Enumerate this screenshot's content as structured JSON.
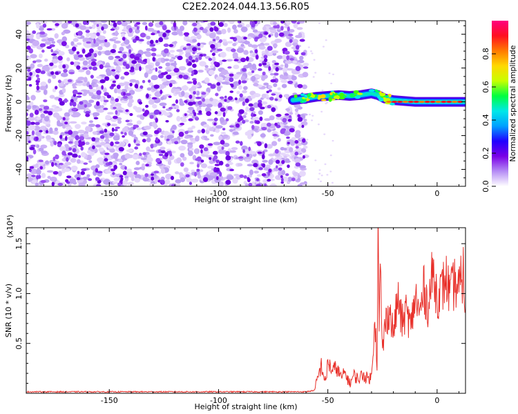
{
  "title": "C2E2.2024.044.13.56.R05",
  "chart_data": [
    {
      "type": "heatmap",
      "name": "spectrogram",
      "xlabel": "Height of straight line (km)",
      "ylabel": "Frequency (Hz)",
      "xlim": [
        -188,
        13
      ],
      "ylim": [
        -50,
        48
      ],
      "xticks": [
        -150,
        -100,
        -50,
        0
      ],
      "yticks": [
        -40,
        -20,
        0,
        20,
        40
      ],
      "noise_region_x": [
        -188,
        -60
      ],
      "signal_track": [
        {
          "x": -66,
          "y": 1
        },
        {
          "x": -60,
          "y": 2
        },
        {
          "x": -55,
          "y": 3
        },
        {
          "x": -50,
          "y": 3.5
        },
        {
          "x": -45,
          "y": 4
        },
        {
          "x": -40,
          "y": 3.5
        },
        {
          "x": -35,
          "y": 4
        },
        {
          "x": -30,
          "y": 5
        },
        {
          "x": -27,
          "y": 4
        },
        {
          "x": -24,
          "y": 2
        },
        {
          "x": -20,
          "y": 1
        },
        {
          "x": -10,
          "y": 0
        },
        {
          "x": 0,
          "y": 0
        },
        {
          "x": 13,
          "y": 0
        }
      ],
      "colorbar": {
        "label": "Normalized spectral amplitude",
        "range": [
          0,
          1
        ],
        "ticks": [
          "0.0",
          "0.2",
          "0.4",
          "0.6",
          "0.8"
        ],
        "colormap": [
          "#ffffff",
          "#b58cf5",
          "#7a00e6",
          "#2000ff",
          "#00a0ff",
          "#00e8e8",
          "#00ff40",
          "#c8ff00",
          "#ffd800",
          "#ff7a00",
          "#ff1020",
          "#ff0080"
        ]
      }
    },
    {
      "type": "line",
      "name": "snr",
      "xlabel": "Height of straight line (km)",
      "ylabel": "SNR (10 * v/v)",
      "yunit": "(x10⁴)",
      "xlim": [
        -188,
        13
      ],
      "ylim": [
        0,
        16600
      ],
      "xticks": [
        -150,
        -100,
        -50,
        0
      ],
      "yticks": [
        5000,
        10000,
        15000
      ],
      "ytick_labels": [
        "0.5",
        "1.0",
        "1.5"
      ],
      "color": "#e8302a",
      "series": [
        {
          "x": [
            -188,
            -150,
            -100,
            -60,
            -56,
            -55,
            -53,
            -51,
            -50,
            -48,
            -46,
            -44,
            -42,
            -40,
            -38,
            -36,
            -34,
            -32,
            -30,
            -28.5,
            -27.5,
            -27,
            -26.5,
            -26,
            -25,
            -24,
            -22,
            -20,
            -18,
            -16,
            -14,
            -12,
            -10,
            -8,
            -6,
            -4,
            -2,
            0,
            2,
            4,
            6,
            8,
            10,
            12,
            13
          ],
          "y": [
            150,
            150,
            150,
            150,
            300,
            1200,
            2800,
            1000,
            3200,
            2200,
            2600,
            1600,
            2000,
            1000,
            1800,
            1400,
            1900,
            1500,
            1600,
            8000,
            3000,
            16500,
            6000,
            12500,
            4000,
            6500,
            8500,
            6000,
            9500,
            7000,
            8300,
            6500,
            9800,
            7800,
            10500,
            8600,
            12200,
            9800,
            10200,
            11600,
            9800,
            11100,
            10300,
            12100,
            8400
          ]
        }
      ]
    }
  ]
}
